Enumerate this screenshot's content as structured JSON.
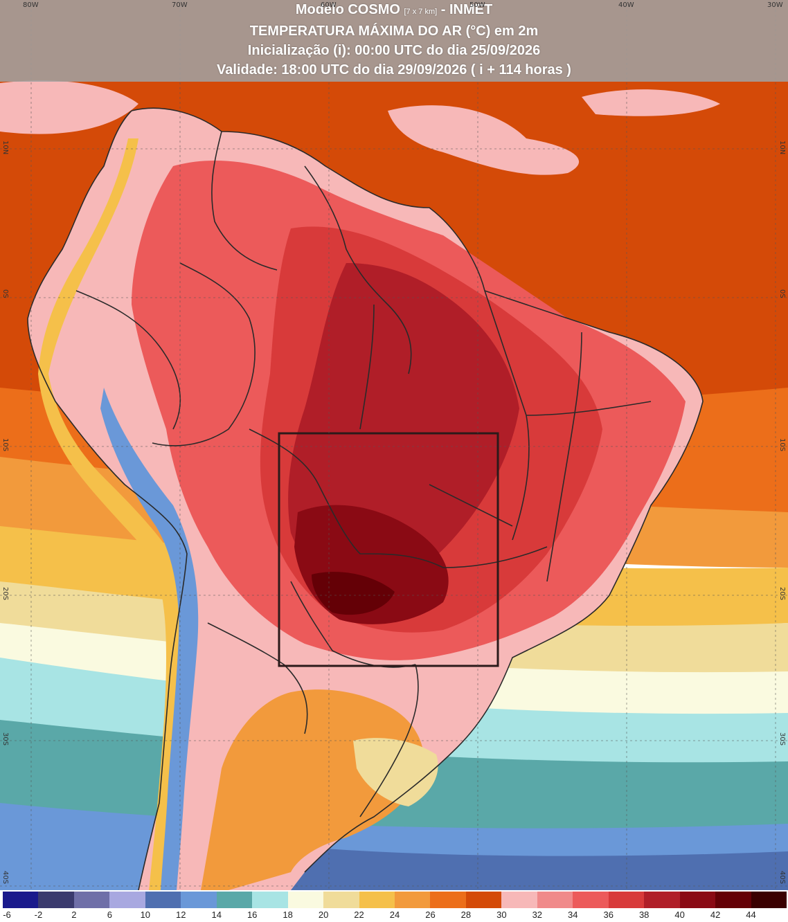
{
  "title": {
    "model": "Modelo COSMO",
    "resolution": "[7 x 7 km]",
    "org": "- INMET",
    "line2": "TEMPERATURA MÁXIMA DO AR (°C) em 2m",
    "line3": "Inicialização (i): 00:00 UTC do dia 25/09/2026",
    "line4": "Validade: 18:00 UTC do dia 29/09/2026 ( i + 114 horas )"
  },
  "longitude_labels": [
    "80W",
    "70W",
    "60W",
    "50W",
    "40W",
    "30W"
  ],
  "latitude_labels": [
    "10N",
    "0S",
    "10S",
    "20S",
    "30S",
    "40S"
  ],
  "highlight_region": "box",
  "colorbar": {
    "labels": [
      "-6",
      "-2",
      "2",
      "6",
      "10",
      "12",
      "14",
      "16",
      "18",
      "20",
      "22",
      "24",
      "26",
      "28",
      "30",
      "32",
      "34",
      "36",
      "38",
      "40",
      "42",
      "44"
    ],
    "colors": [
      "#1a1a8c",
      "#3a3a6e",
      "#6f6fa8",
      "#a8a8e0",
      "#4f6fb0",
      "#6a98d8",
      "#5aa8a8",
      "#a8e4e4",
      "#fafae0",
      "#f0dc9a",
      "#f5c04a",
      "#f29a3c",
      "#ec6e1a",
      "#d44a08",
      "#f7b8b8",
      "#f08a8a",
      "#ec5a5a",
      "#d83a3a",
      "#b01e28",
      "#8a0a14",
      "#640006",
      "#3a0000"
    ]
  },
  "colors": {
    "ocean_warm": "#d44a08",
    "land_hot": "#b01e28",
    "land_hotter": "#8a0a14",
    "land_hottest": "#640006",
    "border": "#2a2a2a"
  }
}
